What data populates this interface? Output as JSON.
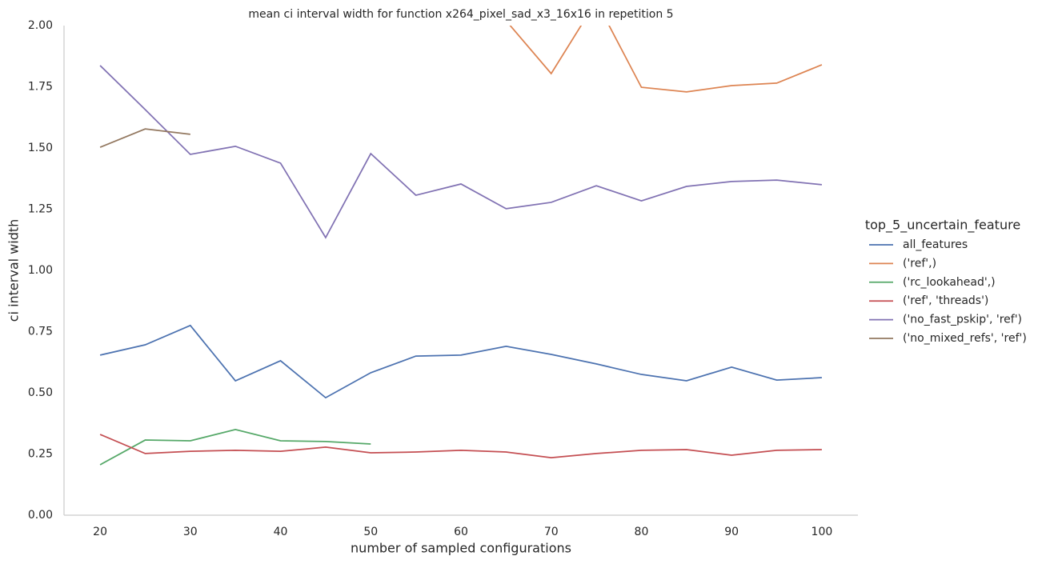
{
  "chart_data": {
    "type": "line",
    "title": "mean ci interval width for function x264_pixel_sad_x3_16x16 in repetition 5",
    "x_label": "number of sampled configurations",
    "y_label": "ci interval width",
    "legend_title": "top_5_uncertain_feature",
    "legend_position": "right",
    "grid": false,
    "x": [
      20,
      25,
      30,
      35,
      40,
      45,
      50,
      55,
      60,
      65,
      70,
      75,
      80,
      85,
      90,
      95,
      100
    ],
    "xlim": [
      16,
      104
    ],
    "xticks": [
      20,
      30,
      40,
      50,
      60,
      70,
      80,
      90,
      100
    ],
    "ylim": [
      0,
      2
    ],
    "yticks": [
      {
        "value": 0,
        "label": "0.00"
      },
      {
        "value": 0.25,
        "label": "0.25"
      },
      {
        "value": 0.5,
        "label": "0.50"
      },
      {
        "value": 0.75,
        "label": "0.75"
      },
      {
        "value": 1,
        "label": "1.00"
      },
      {
        "value": 1.25,
        "label": "1.25"
      },
      {
        "value": 1.5,
        "label": "1.50"
      },
      {
        "value": 1.75,
        "label": "1.75"
      },
      {
        "value": 2,
        "label": "2.00"
      }
    ],
    "series": [
      {
        "name": "all_features",
        "color": "#4c72b0",
        "values": [
          0.654,
          0.696,
          0.775,
          0.549,
          0.631,
          0.48,
          0.582,
          0.65,
          0.654,
          0.69,
          0.657,
          0.618,
          0.575,
          0.549,
          0.605,
          0.552,
          0.562
        ]
      },
      {
        "name": "('ref',)",
        "color": "#dd8452",
        "values": [
          null,
          null,
          null,
          null,
          null,
          null,
          null,
          null,
          null,
          2.02,
          1.804,
          2.1,
          1.748,
          1.729,
          1.755,
          1.765,
          1.84
        ]
      },
      {
        "name": "('rc_lookahead',)",
        "color": "#55a868",
        "values": [
          0.206,
          0.307,
          0.304,
          0.35,
          0.304,
          0.301,
          0.291,
          null,
          null,
          null,
          null,
          null,
          null,
          null,
          null,
          null,
          null
        ]
      },
      {
        "name": "('ref', 'threads')",
        "color": "#c44e52",
        "values": [
          0.33,
          0.252,
          0.261,
          0.265,
          0.261,
          0.278,
          0.255,
          0.258,
          0.265,
          0.258,
          0.235,
          0.252,
          0.265,
          0.268,
          0.245,
          0.265,
          0.268
        ]
      },
      {
        "name": "('no_fast_pskip', 'ref')",
        "color": "#8172b3",
        "values": [
          1.837,
          1.657,
          1.474,
          1.507,
          1.438,
          1.134,
          1.477,
          1.307,
          1.353,
          1.252,
          1.278,
          1.346,
          1.284,
          1.343,
          1.363,
          1.369,
          1.35
        ]
      },
      {
        "name": "('no_mixed_refs', 'ref')",
        "color": "#937860",
        "values": [
          1.503,
          1.578,
          1.556,
          null,
          null,
          null,
          null,
          null,
          null,
          null,
          null,
          null,
          null,
          null,
          null,
          null,
          null
        ]
      }
    ]
  }
}
